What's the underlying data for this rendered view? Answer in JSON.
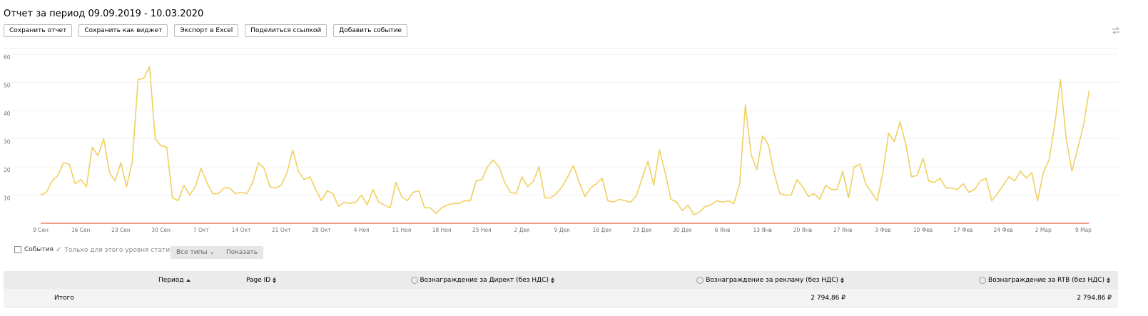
{
  "header": {
    "title": "Отчет за период 09.09.2019 - 10.03.2020"
  },
  "buttons": [
    "Сохранить отчет",
    "Сохранить как виджет",
    "Экспорт в Excel",
    "Поделиться ссылкой",
    "Добавить событие"
  ],
  "chart_data": {
    "type": "line",
    "color": "#f0d060",
    "grid": true,
    "ylim": [
      0,
      60
    ],
    "yticks": [
      10,
      20,
      30,
      40,
      50,
      60
    ],
    "categories": [
      "9 Сен",
      null,
      null,
      null,
      null,
      null,
      null,
      "16 Сен",
      null,
      null,
      null,
      null,
      null,
      null,
      "23 Сен",
      null,
      null,
      null,
      null,
      null,
      null,
      "30 Сен",
      null,
      null,
      null,
      null,
      null,
      null,
      "7 Окт",
      null,
      null,
      null,
      null,
      null,
      null,
      "14 Окт",
      null,
      null,
      null,
      null,
      null,
      null,
      "21 Окт",
      null,
      null,
      null,
      null,
      null,
      null,
      "28 Окт",
      null,
      null,
      null,
      null,
      null,
      null,
      "4 Ноя",
      null,
      null,
      null,
      null,
      null,
      null,
      "11 Ноя",
      null,
      null,
      null,
      null,
      null,
      null,
      "18 Ноя",
      null,
      null,
      null,
      null,
      null,
      null,
      "25 Ноя",
      null,
      null,
      null,
      null,
      null,
      null,
      "2 Дек",
      null,
      null,
      null,
      null,
      null,
      null,
      "9 Дек",
      null,
      null,
      null,
      null,
      null,
      null,
      "16 Дек",
      null,
      null,
      null,
      null,
      null,
      null,
      "23 Дек",
      null,
      null,
      null,
      null,
      null,
      null,
      "30 Дек",
      null,
      null,
      null,
      null,
      null,
      null,
      "6 Янв",
      null,
      null,
      null,
      null,
      null,
      null,
      "13 Янв",
      null,
      null,
      null,
      null,
      null,
      null,
      "20 Янв",
      null,
      null,
      null,
      null,
      null,
      null,
      "27 Янв",
      null,
      null,
      null,
      null,
      null,
      null,
      "3 Фев",
      null,
      null,
      null,
      null,
      null,
      null,
      "10 Фев",
      null,
      null,
      null,
      null,
      null,
      null,
      "17 Фев",
      null,
      null,
      null,
      null,
      null,
      null,
      "24 Фев",
      null,
      null,
      null,
      null,
      null,
      null,
      "2 Мар",
      null,
      null,
      null,
      null,
      null,
      null,
      "9 Мар",
      null
    ],
    "values": [
      10,
      11,
      15,
      17,
      21.5,
      21,
      14,
      15.5,
      13,
      27,
      24,
      30,
      18,
      15,
      21.5,
      13,
      22,
      51,
      51.5,
      55.5,
      30,
      27.5,
      27,
      9,
      8,
      13.5,
      10,
      13,
      19.5,
      14.5,
      10.5,
      10.5,
      12.5,
      12.5,
      10.5,
      11,
      10.5,
      14.5,
      21.5,
      19.5,
      13,
      12.5,
      13.5,
      18,
      26,
      18.5,
      15.5,
      16.5,
      12,
      8,
      11.5,
      10.5,
      6,
      7.5,
      7,
      7.5,
      10,
      6.5,
      12,
      7.5,
      6.5,
      5.5,
      14.5,
      9.5,
      8,
      11,
      11.5,
      5.5,
      5.5,
      3.5,
      5.5,
      6.5,
      7,
      7,
      8,
      8,
      15,
      15.5,
      20,
      22.5,
      20,
      14.5,
      11,
      10.5,
      16.5,
      13,
      15,
      20,
      9,
      9,
      10.5,
      13,
      16.5,
      20.5,
      14.5,
      9.5,
      12.5,
      14,
      16,
      8,
      7.5,
      8.5,
      8,
      7.5,
      10,
      16,
      22,
      13.5,
      26,
      18,
      8.5,
      7.5,
      4.5,
      6.5,
      3,
      4,
      6,
      6.5,
      8,
      7.5,
      8,
      7,
      14,
      42,
      24.5,
      19,
      31,
      28,
      18,
      10.5,
      10,
      10,
      15.5,
      13,
      9.5,
      10.5,
      8.5,
      13.5,
      12,
      12,
      18.5,
      9,
      20,
      21,
      14,
      11,
      8,
      18,
      32,
      29,
      36,
      28,
      16.5,
      17,
      23,
      15,
      14.5,
      16,
      12.5,
      12.5,
      12,
      14,
      11,
      12,
      15,
      16,
      8,
      10.5,
      13.5,
      16.5,
      15,
      18.5,
      16,
      18,
      8,
      18,
      22.5,
      35,
      51,
      30,
      18.5,
      26.5,
      34.5,
      47
    ]
  },
  "controls": {
    "events": "События",
    "only_level": "Только для этого уровня статистики",
    "types": "Все типы",
    "show": "Показать"
  },
  "table": {
    "header": [
      "Период",
      "Page ID",
      "Вознаграждение за Директ (без НДС)",
      "Вознаграждение за рекламу (без НДС)",
      "Вознаграждение за RTB (без НДС)"
    ],
    "total": [
      "Итого",
      "2 794,86 ₽",
      "2 794,86 ₽"
    ]
  }
}
